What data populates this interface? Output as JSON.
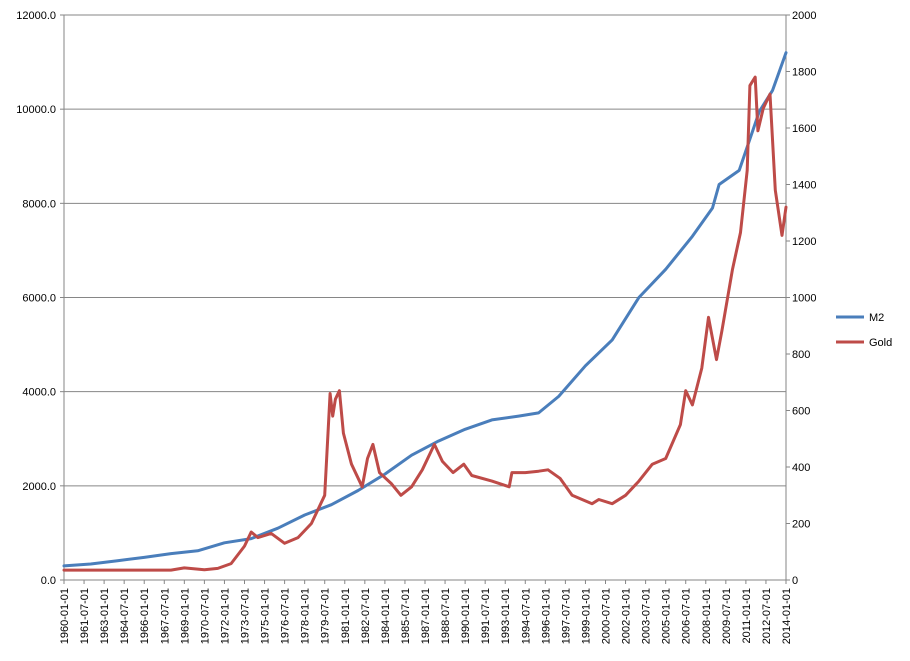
{
  "chart_data": {
    "type": "line",
    "title": "",
    "xlabel": "",
    "ylabel": "",
    "y_left": {
      "min": 0,
      "max": 12000,
      "step": 2000,
      "tick_labels": [
        "0.0",
        "2000.0",
        "4000.0",
        "6000.0",
        "8000.0",
        "10000.0",
        "12000.0"
      ]
    },
    "y_right": {
      "min": 0,
      "max": 2000,
      "step": 200,
      "tick_labels": [
        "0",
        "200",
        "400",
        "600",
        "800",
        "1000",
        "1200",
        "1400",
        "1600",
        "1800",
        "2000"
      ]
    },
    "x_tick_labels": [
      "1960-01-01",
      "1961-07-01",
      "1963-01-01",
      "1964-07-01",
      "1966-01-01",
      "1967-07-01",
      "1969-01-01",
      "1970-07-01",
      "1972-01-01",
      "1973-07-01",
      "1975-01-01",
      "1976-07-01",
      "1978-01-01",
      "1979-07-01",
      "1981-01-01",
      "1982-07-01",
      "1984-01-01",
      "1985-07-01",
      "1987-01-01",
      "1988-07-01",
      "1990-01-01",
      "1991-07-01",
      "1993-01-01",
      "1994-07-01",
      "1996-01-01",
      "1997-07-01",
      "1999-01-01",
      "2000-07-01",
      "2002-01-01",
      "2003-07-01",
      "2005-01-01",
      "2006-07-01",
      "2008-01-01",
      "2009-07-01",
      "2011-01-01",
      "2012-07-01",
      "2014-01-01"
    ],
    "x_range": [
      1960.0,
      2014.0
    ],
    "grid": "horizontal",
    "legend_position": "right",
    "series": [
      {
        "name": "M2",
        "axis": "left",
        "color": "#4A7EBB",
        "x": [
          1960,
          1962,
          1964,
          1966,
          1968,
          1970,
          1972,
          1974,
          1976,
          1978,
          1980,
          1982,
          1984,
          1986,
          1988,
          1990,
          1992,
          1994,
          1995.5,
          1997,
          1999,
          2001,
          2003,
          2005,
          2007,
          2008.5,
          2009,
          2010.5,
          2012,
          2013,
          2014
        ],
        "values": [
          300,
          340,
          410,
          480,
          560,
          620,
          790,
          880,
          1100,
          1380,
          1600,
          1900,
          2250,
          2650,
          2950,
          3200,
          3400,
          3480,
          3550,
          3900,
          4550,
          5100,
          6000,
          6600,
          7300,
          7900,
          8400,
          8700,
          9950,
          10400,
          11200
        ]
      },
      {
        "name": "Gold",
        "axis": "right",
        "color": "#BE4B48",
        "x": [
          1960,
          1968,
          1969,
          1970.5,
          1971.5,
          1972.5,
          1973.5,
          1974,
          1974.5,
          1975.5,
          1976.5,
          1977.5,
          1978.5,
          1979.5,
          1979.9,
          1980.1,
          1980.3,
          1980.6,
          1980.9,
          1981.5,
          1982.3,
          1982.7,
          1983.1,
          1983.6,
          1984.5,
          1985.2,
          1986,
          1986.8,
          1987.7,
          1988.3,
          1989.1,
          1989.9,
          1990.5,
          1992,
          1993.3,
          1993.5,
          1994.5,
          1995.5,
          1996.2,
          1997.1,
          1998,
          1999.5,
          2000,
          2001,
          2002,
          2003,
          2004,
          2005,
          2006.1,
          2006.5,
          2007,
          2007.7,
          2008.2,
          2008.8,
          2009.2,
          2010,
          2010.6,
          2011.1,
          2011.3,
          2011.7,
          2011.9,
          2012.3,
          2012.8,
          2013.2,
          2013.7,
          2014
        ],
        "values": [
          35,
          35,
          43,
          36,
          41,
          58,
          120,
          170,
          150,
          165,
          130,
          150,
          200,
          300,
          660,
          580,
          640,
          670,
          520,
          410,
          330,
          430,
          480,
          380,
          340,
          300,
          330,
          390,
          480,
          420,
          380,
          410,
          370,
          350,
          330,
          380,
          380,
          385,
          390,
          360,
          300,
          270,
          285,
          270,
          300,
          350,
          410,
          430,
          550,
          670,
          620,
          750,
          930,
          780,
          880,
          1100,
          1230,
          1450,
          1750,
          1780,
          1590,
          1670,
          1720,
          1380,
          1220,
          1320
        ]
      }
    ]
  }
}
